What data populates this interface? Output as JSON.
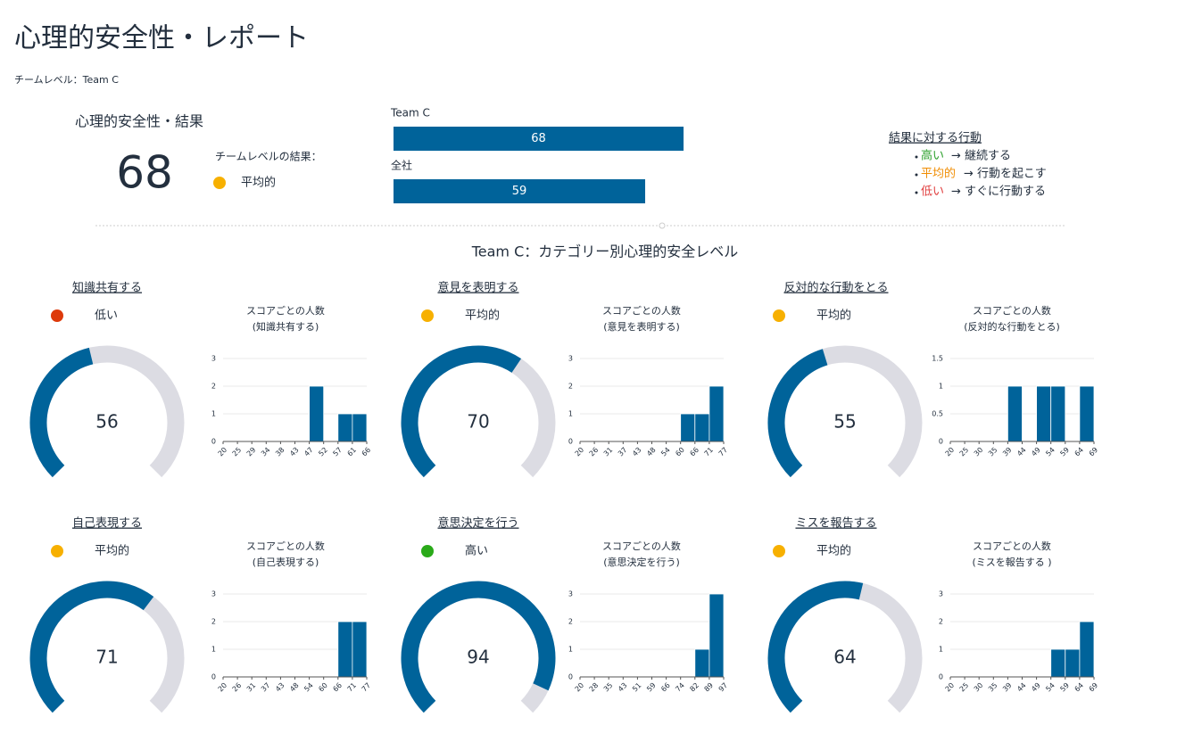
{
  "header": {
    "title": "心理的安全性・レポート",
    "subtitle": "チームレベル：Team C"
  },
  "summary": {
    "title": "心理的安全性・結果",
    "score": 68,
    "result_label": "チームレベルの結果：",
    "result": "平均的",
    "result_color": "#f7b000"
  },
  "comparison": {
    "type": "bar",
    "categories": [
      "Team C",
      "全社"
    ],
    "values": [
      68,
      59
    ],
    "color": "#00639a",
    "xlim": [
      0,
      100
    ]
  },
  "legend": {
    "title": "結果に対する行動",
    "items": [
      {
        "level": "高い",
        "color": "#2ca02c",
        "action": "→ 継続する"
      },
      {
        "level": "平均的",
        "color": "#f08c00",
        "action": "→ 行動を起こす"
      },
      {
        "level": "低い",
        "color": "#e03c3c",
        "action": "→ すぐに行動する"
      }
    ]
  },
  "section_title": "Team C：カテゴリー別心理的安全レベル",
  "panels": [
    {
      "title": "知識共有する",
      "status": "低い",
      "status_color": "#dd3a0b",
      "gauge": {
        "type": "gauge",
        "value": 56,
        "range": [
          20,
          100
        ],
        "color": "#00639a"
      },
      "histogram": {
        "type": "histogram",
        "title": "スコアごとの人数",
        "subtitle": "(知識共有する)",
        "bins": [
          20,
          25,
          29,
          34,
          38,
          43,
          47,
          52,
          57,
          61,
          66
        ],
        "counts": [
          0,
          0,
          0,
          0,
          0,
          0,
          2,
          0,
          1,
          1
        ],
        "ylim": [
          0,
          3
        ],
        "yticks": [
          0,
          1,
          2,
          3
        ],
        "color": "#00639a"
      }
    },
    {
      "title": "意見を表明する",
      "status": "平均的",
      "status_color": "#f7b000",
      "gauge": {
        "type": "gauge",
        "value": 70,
        "range": [
          20,
          100
        ],
        "color": "#00639a"
      },
      "histogram": {
        "type": "histogram",
        "title": "スコアごとの人数",
        "subtitle": "(意見を表明する)",
        "bins": [
          20,
          26,
          31,
          37,
          43,
          48,
          54,
          60,
          66,
          71,
          77
        ],
        "counts": [
          0,
          0,
          0,
          0,
          0,
          0,
          0,
          1,
          1,
          2
        ],
        "ylim": [
          0,
          3
        ],
        "yticks": [
          0,
          1,
          2,
          3
        ],
        "color": "#00639a"
      }
    },
    {
      "title": "反対的な行動をとる",
      "status": "平均的",
      "status_color": "#f7b000",
      "gauge": {
        "type": "gauge",
        "value": 55,
        "range": [
          20,
          100
        ],
        "color": "#00639a"
      },
      "histogram": {
        "type": "histogram",
        "title": "スコアごとの人数",
        "subtitle": "(反対的な行動をとる)",
        "bins": [
          20,
          25,
          30,
          35,
          39,
          44,
          49,
          54,
          59,
          64,
          69
        ],
        "counts": [
          0,
          0,
          0,
          0,
          1,
          0,
          1,
          1,
          0,
          1
        ],
        "ylim": [
          0,
          1.5
        ],
        "yticks": [
          0,
          0.5,
          1,
          1.5
        ],
        "color": "#00639a"
      }
    },
    {
      "title": "自己表現する",
      "status": "平均的",
      "status_color": "#f7b000",
      "gauge": {
        "type": "gauge",
        "value": 71,
        "range": [
          20,
          100
        ],
        "color": "#00639a"
      },
      "histogram": {
        "type": "histogram",
        "title": "スコアごとの人数",
        "subtitle": "(自己表現する)",
        "bins": [
          20,
          26,
          31,
          37,
          43,
          48,
          54,
          60,
          66,
          71,
          77
        ],
        "counts": [
          0,
          0,
          0,
          0,
          0,
          0,
          0,
          0,
          2,
          2
        ],
        "ylim": [
          0,
          3
        ],
        "yticks": [
          0,
          1,
          2,
          3
        ],
        "color": "#00639a"
      }
    },
    {
      "title": "意思決定を行う",
      "status": "高い",
      "status_color": "#2aaa19",
      "gauge": {
        "type": "gauge",
        "value": 94,
        "range": [
          20,
          100
        ],
        "color": "#00639a"
      },
      "histogram": {
        "type": "histogram",
        "title": "スコアごとの人数",
        "subtitle": "(意思決定を行う)",
        "bins": [
          20,
          28,
          35,
          43,
          51,
          59,
          66,
          74,
          82,
          89,
          97
        ],
        "counts": [
          0,
          0,
          0,
          0,
          0,
          0,
          0,
          0,
          1,
          3
        ],
        "ylim": [
          0,
          3
        ],
        "yticks": [
          0,
          1,
          2,
          3
        ],
        "color": "#00639a"
      }
    },
    {
      "title": "ミスを報告する",
      "status": "平均的",
      "status_color": "#f7b000",
      "gauge": {
        "type": "gauge",
        "value": 64,
        "range": [
          20,
          100
        ],
        "color": "#00639a"
      },
      "histogram": {
        "type": "histogram",
        "title": "スコアごとの人数",
        "subtitle": "(ミスを報告する )",
        "bins": [
          20,
          25,
          30,
          35,
          39,
          44,
          49,
          54,
          59,
          64,
          69
        ],
        "counts": [
          0,
          0,
          0,
          0,
          0,
          0,
          0,
          1,
          1,
          2
        ],
        "ylim": [
          0,
          3
        ],
        "yticks": [
          0,
          1,
          2,
          3
        ],
        "color": "#00639a"
      }
    }
  ]
}
